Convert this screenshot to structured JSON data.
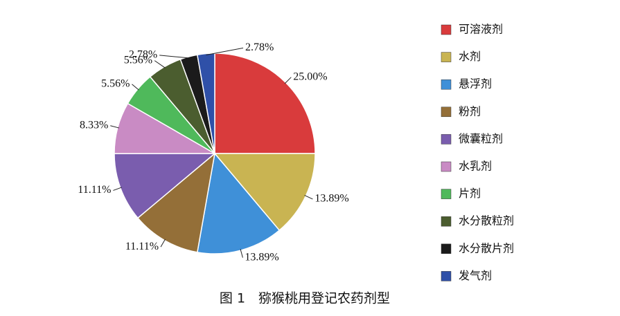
{
  "chart_data": {
    "type": "pie",
    "title": "图 1　猕猴桃用登记农药剂型",
    "categories": [
      "可溶液剂",
      "水剂",
      "悬浮剂",
      "粉剂",
      "微囊粒剂",
      "水乳剂",
      "片剂",
      "水分散粒剂",
      "水分散片剂",
      "发气剂"
    ],
    "values": [
      25.0,
      13.89,
      13.89,
      11.11,
      11.11,
      8.33,
      5.56,
      5.56,
      2.78,
      2.78
    ],
    "value_labels": [
      "25.00%",
      "13.89%",
      "13.89%",
      "11.11%",
      "11.11%",
      "8.33%",
      "5.56%",
      "5.56%",
      "2.78%",
      "2.78%"
    ],
    "colors": [
      "#d93b3c",
      "#c9b452",
      "#3f90d8",
      "#946f38",
      "#7a5dae",
      "#c98bc4",
      "#4fb95b",
      "#4b5d2f",
      "#1b1b1b",
      "#2f50a8"
    ],
    "legend": "right"
  }
}
